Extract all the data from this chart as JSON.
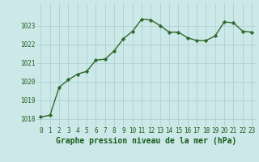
{
  "x": [
    0,
    1,
    2,
    3,
    4,
    5,
    6,
    7,
    8,
    9,
    10,
    11,
    12,
    13,
    14,
    15,
    16,
    17,
    18,
    19,
    20,
    21,
    22,
    23
  ],
  "y": [
    1018.1,
    1018.2,
    1019.7,
    1020.1,
    1020.4,
    1020.55,
    1021.15,
    1021.2,
    1021.65,
    1022.3,
    1022.7,
    1023.35,
    1023.3,
    1023.0,
    1022.65,
    1022.65,
    1022.35,
    1022.2,
    1022.2,
    1022.45,
    1023.2,
    1023.15,
    1022.7,
    1022.65
  ],
  "line_color": "#2d6a2d",
  "marker": "D",
  "marker_size": 2.2,
  "line_width": 1.0,
  "bg_color": "#cce8e8",
  "grid_color": "#aacccc",
  "tick_label_color": "#1a5c1a",
  "xlabel": "Graphe pression niveau de la mer (hPa)",
  "xlabel_color": "#1a5c1a",
  "xlabel_fontsize": 7.0,
  "ylim_min": 1017.6,
  "ylim_max": 1024.2,
  "yticks": [
    1018,
    1019,
    1020,
    1021,
    1022,
    1023
  ],
  "xticks": [
    0,
    1,
    2,
    3,
    4,
    5,
    6,
    7,
    8,
    9,
    10,
    11,
    12,
    13,
    14,
    15,
    16,
    17,
    18,
    19,
    20,
    21,
    22,
    23
  ],
  "tick_fontsize": 5.5
}
